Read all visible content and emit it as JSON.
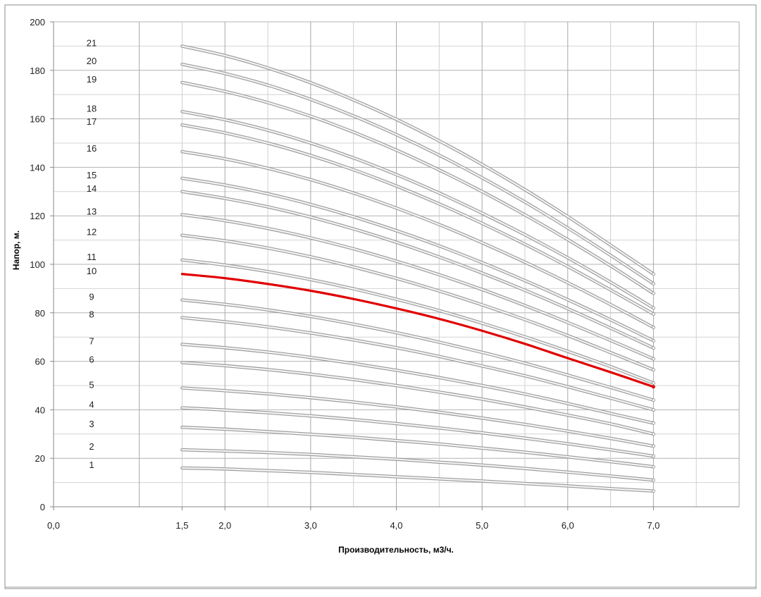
{
  "chart_data": {
    "type": "line",
    "xlabel": "Производительность, м3/ч.",
    "ylabel": "Напор, м.",
    "xlim": [
      0.0,
      8.0
    ],
    "ylim": [
      0,
      200
    ],
    "x_ticks": [
      "0,0",
      "1,5",
      "2,0",
      "3,0",
      "4,0",
      "5,0",
      "6,0",
      "7,0"
    ],
    "y_ticks": [
      "0",
      "20",
      "40",
      "60",
      "80",
      "100",
      "120",
      "140",
      "160",
      "180",
      "200"
    ],
    "grid": true,
    "highlight_color": "#e00000",
    "curve_color": "#c8c8c8",
    "x": [
      1.5,
      2.0,
      2.5,
      3.0,
      3.5,
      4.0,
      4.5,
      5.0,
      5.5,
      6.0,
      6.5,
      7.0
    ],
    "series": [
      {
        "name": "1",
        "values": [
          16.0,
          15.6,
          14.9,
          14.2,
          13.3,
          12.4,
          11.5,
          10.6,
          9.6,
          8.6,
          7.5,
          6.5
        ]
      },
      {
        "name": "2",
        "values": [
          23.5,
          23.0,
          22.4,
          21.6,
          20.6,
          19.6,
          18.4,
          17.2,
          15.8,
          14.3,
          12.7,
          11.0
        ]
      },
      {
        "name": "3",
        "values": [
          32.8,
          32.0,
          31.0,
          29.9,
          28.7,
          27.3,
          25.9,
          24.2,
          22.5,
          20.6,
          18.6,
          16.5
        ]
      },
      {
        "name": "4",
        "values": [
          40.8,
          39.9,
          38.8,
          37.5,
          36.0,
          34.3,
          32.5,
          30.5,
          28.3,
          26.0,
          23.5,
          20.9
        ]
      },
      {
        "name": "5",
        "values": [
          49.0,
          47.9,
          46.6,
          45.0,
          43.2,
          41.2,
          39.0,
          36.6,
          34.0,
          31.2,
          28.2,
          25.0
        ]
      },
      {
        "name": "6",
        "values": [
          59.5,
          58.2,
          56.6,
          54.7,
          52.5,
          50.0,
          47.3,
          44.4,
          41.2,
          37.8,
          34.2,
          30.0
        ]
      },
      {
        "name": "7",
        "values": [
          67.0,
          65.6,
          63.8,
          61.6,
          59.1,
          56.3,
          53.3,
          50.0,
          46.5,
          42.6,
          38.5,
          34.5
        ]
      },
      {
        "name": "8",
        "values": [
          78.0,
          76.3,
          74.2,
          71.7,
          68.8,
          65.6,
          62.0,
          58.1,
          54.0,
          49.5,
          44.8,
          40.0
        ]
      },
      {
        "name": "9",
        "values": [
          85.3,
          83.5,
          81.2,
          78.5,
          75.3,
          71.8,
          67.9,
          63.7,
          59.2,
          54.3,
          49.2,
          44.0
        ]
      },
      {
        "name": "10",
        "values": [
          96.0,
          94.3,
          91.9,
          89.1,
          85.7,
          81.8,
          77.5,
          72.6,
          67.2,
          61.3,
          55.5,
          49.5
        ]
      },
      {
        "name": "11",
        "values": [
          101.8,
          99.7,
          97.0,
          93.7,
          89.9,
          85.6,
          80.9,
          75.7,
          70.1,
          64.1,
          57.8,
          51.0
        ]
      },
      {
        "name": "12",
        "values": [
          112.0,
          109.7,
          106.7,
          103.1,
          98.9,
          94.2,
          89.0,
          83.3,
          77.2,
          70.6,
          63.6,
          56.5
        ]
      },
      {
        "name": "13",
        "values": [
          120.5,
          118.0,
          114.8,
          110.9,
          106.4,
          101.3,
          95.7,
          89.6,
          83.0,
          76.0,
          68.6,
          61.0
        ]
      },
      {
        "name": "14",
        "values": [
          130.0,
          127.2,
          123.7,
          119.5,
          114.6,
          109.1,
          103.0,
          96.4,
          89.3,
          81.7,
          73.7,
          65.5
        ]
      },
      {
        "name": "15",
        "values": [
          135.5,
          132.7,
          129.1,
          124.7,
          119.6,
          113.9,
          107.6,
          100.7,
          93.3,
          85.4,
          77.1,
          68.5
        ]
      },
      {
        "name": "16",
        "values": [
          146.5,
          143.5,
          139.6,
          134.9,
          129.4,
          123.2,
          116.4,
          108.9,
          100.9,
          92.4,
          83.4,
          74.0
        ]
      },
      {
        "name": "17",
        "values": [
          157.5,
          154.2,
          150.0,
          144.9,
          139.0,
          132.3,
          124.9,
          116.9,
          108.3,
          99.1,
          89.4,
          79.5
        ]
      },
      {
        "name": "18",
        "values": [
          163.0,
          159.6,
          155.3,
          150.0,
          143.9,
          137.0,
          129.4,
          121.1,
          112.2,
          102.7,
          92.6,
          82.0
        ]
      },
      {
        "name": "19",
        "values": [
          175.0,
          171.3,
          166.7,
          161.1,
          154.5,
          147.1,
          138.9,
          130.0,
          120.4,
          110.2,
          99.4,
          88.0
        ]
      },
      {
        "name": "20",
        "values": [
          182.5,
          178.7,
          173.9,
          168.0,
          161.2,
          153.5,
          145.0,
          135.7,
          125.7,
          115.0,
          103.7,
          92.0
        ]
      },
      {
        "name": "21",
        "values": [
          190.0,
          186.1,
          181.0,
          174.9,
          167.8,
          159.8,
          150.9,
          141.2,
          130.8,
          119.7,
          107.9,
          96.0
        ]
      }
    ],
    "highlighted_series": "10"
  }
}
